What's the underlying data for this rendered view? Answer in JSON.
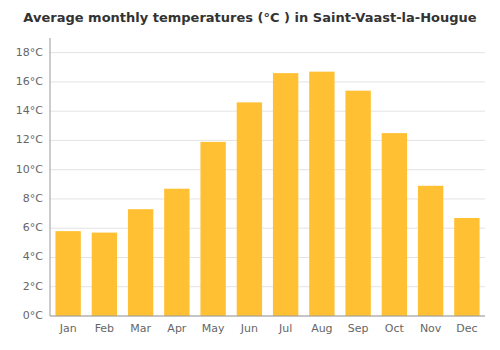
{
  "chart_data": {
    "type": "bar",
    "title": "Average monthly temperatures (°C ) in Saint-Vaast-la-Hougue",
    "categories": [
      "Jan",
      "Feb",
      "Mar",
      "Apr",
      "May",
      "Jun",
      "Jul",
      "Aug",
      "Sep",
      "Oct",
      "Nov",
      "Dec"
    ],
    "values": [
      5.8,
      5.7,
      7.3,
      8.7,
      11.9,
      14.6,
      16.6,
      16.7,
      15.4,
      12.5,
      8.9,
      6.7
    ],
    "color": "#FFC133",
    "ylim": [
      0,
      19
    ],
    "yticks": [
      {
        "value": 0,
        "label": "0°C"
      },
      {
        "value": 2,
        "label": "2°C"
      },
      {
        "value": 4,
        "label": "4°C"
      },
      {
        "value": 6,
        "label": "6°C"
      },
      {
        "value": 8,
        "label": "8°C"
      },
      {
        "value": 10,
        "label": "10°C"
      },
      {
        "value": 12,
        "label": "12°C"
      },
      {
        "value": 14,
        "label": "14°C"
      },
      {
        "value": 16,
        "label": "16°C"
      },
      {
        "value": 18,
        "label": "18°C"
      }
    ],
    "grid": true
  }
}
